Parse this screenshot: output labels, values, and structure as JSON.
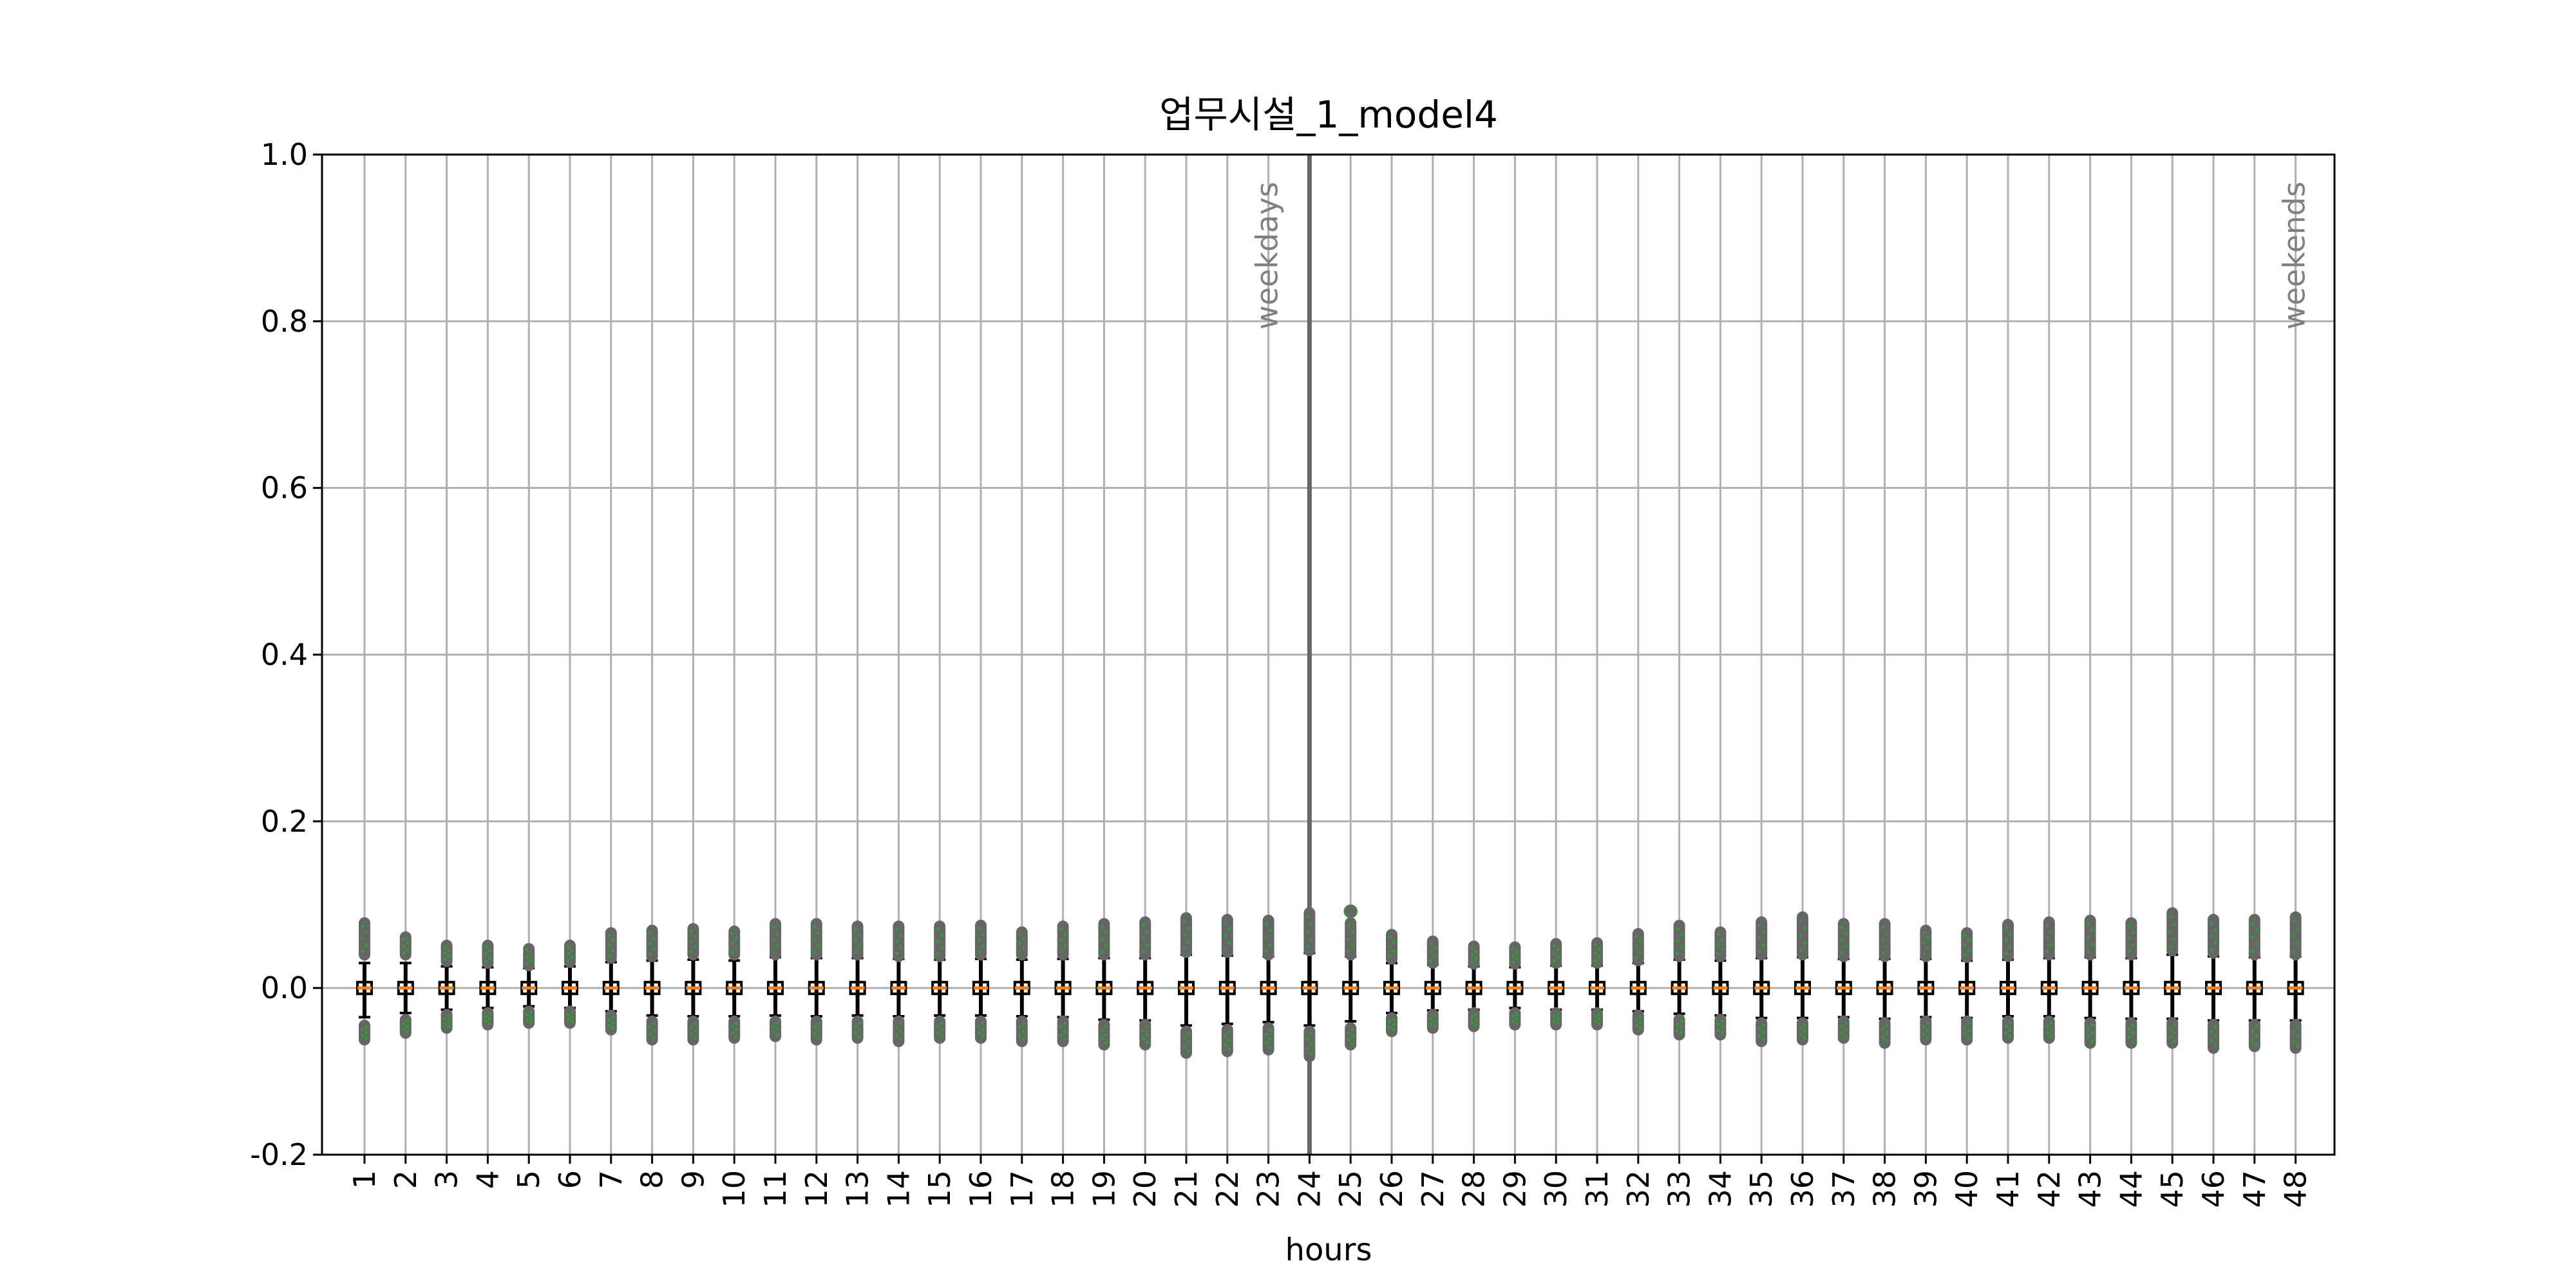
{
  "chart_data": {
    "type": "box",
    "title": "업무시설_1_model4",
    "xlabel": "hours",
    "ylabel": "",
    "categories": [
      "1",
      "2",
      "3",
      "4",
      "5",
      "6",
      "7",
      "8",
      "9",
      "10",
      "11",
      "12",
      "13",
      "14",
      "15",
      "16",
      "17",
      "18",
      "19",
      "20",
      "21",
      "22",
      "23",
      "24",
      "25",
      "26",
      "27",
      "28",
      "29",
      "30",
      "31",
      "32",
      "33",
      "34",
      "35",
      "36",
      "37",
      "38",
      "39",
      "40",
      "41",
      "42",
      "43",
      "44",
      "45",
      "46",
      "47",
      "48"
    ],
    "ylim": [
      -0.2,
      1.0
    ],
    "yticks": [
      -0.2,
      0.0,
      0.2,
      0.4,
      0.6,
      0.8,
      1.0
    ],
    "ytick_labels": [
      "-0.2",
      "0.0",
      "0.2",
      "0.4",
      "0.6",
      "0.8",
      "1.0"
    ],
    "grid": true,
    "separator_at": "24",
    "annotations": [
      {
        "text": "weekdays",
        "category": "23",
        "y": 0.79
      },
      {
        "text": "weekends",
        "category": "48",
        "y": 0.79
      }
    ],
    "colors": {
      "box": "#000000",
      "median": "#ff7f0e",
      "outliers": "#666666",
      "outlier_edge": "#2ca02c",
      "grid": "#b0b0b0",
      "separator": "#666666",
      "annotation": "#808080"
    },
    "whisker_low": [
      -0.035,
      -0.03,
      -0.026,
      -0.024,
      -0.022,
      -0.024,
      -0.028,
      -0.033,
      -0.034,
      -0.034,
      -0.033,
      -0.034,
      -0.033,
      -0.034,
      -0.033,
      -0.033,
      -0.034,
      -0.035,
      -0.038,
      -0.039,
      -0.045,
      -0.043,
      -0.041,
      -0.045,
      -0.04,
      -0.03,
      -0.027,
      -0.026,
      -0.024,
      -0.026,
      -0.026,
      -0.028,
      -0.031,
      -0.033,
      -0.036,
      -0.036,
      -0.035,
      -0.037,
      -0.035,
      -0.036,
      -0.034,
      -0.034,
      -0.036,
      -0.037,
      -0.037,
      -0.039,
      -0.039,
      -0.039
    ],
    "whisker_high": [
      0.03,
      0.03,
      0.026,
      0.025,
      0.024,
      0.026,
      0.031,
      0.033,
      0.034,
      0.033,
      0.037,
      0.036,
      0.036,
      0.035,
      0.034,
      0.035,
      0.034,
      0.035,
      0.036,
      0.036,
      0.04,
      0.039,
      0.038,
      0.042,
      0.038,
      0.03,
      0.028,
      0.026,
      0.025,
      0.027,
      0.027,
      0.03,
      0.034,
      0.033,
      0.036,
      0.037,
      0.035,
      0.035,
      0.035,
      0.033,
      0.034,
      0.036,
      0.037,
      0.036,
      0.04,
      0.038,
      0.037,
      0.038
    ],
    "outliers_high": [
      [
        0.04,
        0.078
      ],
      [
        0.04,
        0.061
      ],
      [
        0.032,
        0.051
      ],
      [
        0.03,
        0.051
      ],
      [
        0.027,
        0.047
      ],
      [
        0.031,
        0.051
      ],
      [
        0.036,
        0.066
      ],
      [
        0.038,
        0.069
      ],
      [
        0.04,
        0.071
      ],
      [
        0.04,
        0.068
      ],
      [
        0.04,
        0.077
      ],
      [
        0.04,
        0.077
      ],
      [
        0.04,
        0.074
      ],
      [
        0.038,
        0.074
      ],
      [
        0.038,
        0.074
      ],
      [
        0.04,
        0.075
      ],
      [
        0.04,
        0.067
      ],
      [
        0.04,
        0.074
      ],
      [
        0.04,
        0.077
      ],
      [
        0.04,
        0.079
      ],
      [
        0.043,
        0.084
      ],
      [
        0.043,
        0.082
      ],
      [
        0.04,
        0.081
      ],
      [
        0.045,
        0.09
      ],
      [
        0.04,
        0.078
      ],
      [
        0.035,
        0.064
      ],
      [
        0.03,
        0.056
      ],
      [
        0.029,
        0.05
      ],
      [
        0.029,
        0.049
      ],
      [
        0.03,
        0.053
      ],
      [
        0.03,
        0.054
      ],
      [
        0.033,
        0.065
      ],
      [
        0.038,
        0.075
      ],
      [
        0.038,
        0.067
      ],
      [
        0.04,
        0.079
      ],
      [
        0.04,
        0.085
      ],
      [
        0.038,
        0.077
      ],
      [
        0.038,
        0.077
      ],
      [
        0.038,
        0.069
      ],
      [
        0.037,
        0.066
      ],
      [
        0.038,
        0.076
      ],
      [
        0.04,
        0.079
      ],
      [
        0.04,
        0.081
      ],
      [
        0.04,
        0.078
      ],
      [
        0.045,
        0.09
      ],
      [
        0.042,
        0.082
      ],
      [
        0.04,
        0.082
      ],
      [
        0.04,
        0.085
      ]
    ],
    "outliers_low": [
      [
        -0.045,
        -0.062
      ],
      [
        -0.038,
        -0.054
      ],
      [
        -0.032,
        -0.048
      ],
      [
        -0.03,
        -0.044
      ],
      [
        -0.028,
        -0.042
      ],
      [
        -0.028,
        -0.042
      ],
      [
        -0.033,
        -0.05
      ],
      [
        -0.04,
        -0.062
      ],
      [
        -0.04,
        -0.062
      ],
      [
        -0.04,
        -0.06
      ],
      [
        -0.04,
        -0.058
      ],
      [
        -0.04,
        -0.062
      ],
      [
        -0.04,
        -0.06
      ],
      [
        -0.04,
        -0.064
      ],
      [
        -0.04,
        -0.06
      ],
      [
        -0.04,
        -0.06
      ],
      [
        -0.04,
        -0.064
      ],
      [
        -0.04,
        -0.064
      ],
      [
        -0.044,
        -0.068
      ],
      [
        -0.044,
        -0.068
      ],
      [
        -0.052,
        -0.078
      ],
      [
        -0.05,
        -0.076
      ],
      [
        -0.048,
        -0.074
      ],
      [
        -0.052,
        -0.082
      ],
      [
        -0.048,
        -0.068
      ],
      [
        -0.036,
        -0.052
      ],
      [
        -0.032,
        -0.048
      ],
      [
        -0.03,
        -0.046
      ],
      [
        -0.03,
        -0.044
      ],
      [
        -0.03,
        -0.044
      ],
      [
        -0.03,
        -0.044
      ],
      [
        -0.033,
        -0.05
      ],
      [
        -0.038,
        -0.056
      ],
      [
        -0.038,
        -0.056
      ],
      [
        -0.042,
        -0.064
      ],
      [
        -0.042,
        -0.062
      ],
      [
        -0.04,
        -0.06
      ],
      [
        -0.042,
        -0.066
      ],
      [
        -0.04,
        -0.062
      ],
      [
        -0.04,
        -0.062
      ],
      [
        -0.04,
        -0.06
      ],
      [
        -0.04,
        -0.06
      ],
      [
        -0.042,
        -0.066
      ],
      [
        -0.042,
        -0.066
      ],
      [
        -0.042,
        -0.066
      ],
      [
        -0.044,
        -0.072
      ],
      [
        -0.044,
        -0.07
      ],
      [
        -0.044,
        -0.072
      ]
    ],
    "extra_outliers": [
      {
        "category": "25",
        "y": 0.092
      }
    ]
  }
}
